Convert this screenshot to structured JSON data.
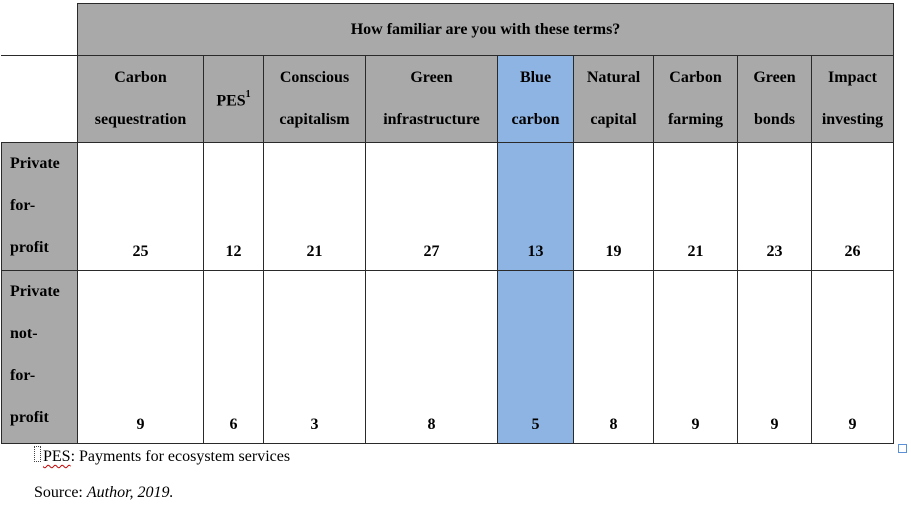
{
  "table": {
    "title": "How familiar are you with these terms?",
    "columns": [
      {
        "lines": [
          "Carbon",
          "sequestration"
        ]
      },
      {
        "lines": [
          "PES"
        ],
        "sup": "1"
      },
      {
        "lines": [
          "Conscious",
          "capitalism"
        ]
      },
      {
        "lines": [
          "Green",
          "infrastructure"
        ]
      },
      {
        "lines": [
          "Blue",
          "carbon"
        ],
        "highlight": true
      },
      {
        "lines": [
          "Natural",
          "capital"
        ]
      },
      {
        "lines": [
          "Carbon",
          "farming"
        ]
      },
      {
        "lines": [
          "Green",
          "bonds"
        ]
      },
      {
        "lines": [
          "Impact",
          "investing"
        ]
      }
    ],
    "rows": [
      {
        "label_lines": [
          "Private",
          "for-",
          "profit"
        ],
        "values": [
          "25",
          "12",
          "21",
          "27",
          "13",
          "19",
          "21",
          "23",
          "26"
        ]
      },
      {
        "label_lines": [
          "Private",
          "not-",
          "for-",
          "profit"
        ],
        "values": [
          "9",
          "6",
          "3",
          "8",
          "5",
          "8",
          "9",
          "9",
          "9"
        ]
      }
    ],
    "highlight_color": "#8eb4e3",
    "header_color": "#a9a9a9"
  },
  "footnote": {
    "marker": "1",
    "abbr": "PES",
    "text": ": Payments for ecosystem services"
  },
  "source": {
    "prefix": "Source: ",
    "italic": "Author, 2019."
  }
}
